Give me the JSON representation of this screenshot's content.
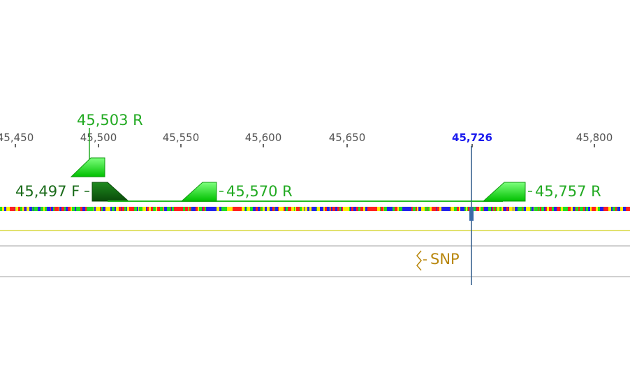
{
  "ruler": {
    "ticks": [
      {
        "label": "45,450",
        "pos": 45450
      },
      {
        "label": "45,500",
        "pos": 45500
      },
      {
        "label": "45,550",
        "pos": 45550
      },
      {
        "label": "45,600",
        "pos": 45600
      },
      {
        "label": "45,650",
        "pos": 45650
      },
      {
        "label": "45,800",
        "pos": 45800
      }
    ],
    "cursor": {
      "label": "45,726",
      "pos": 45726
    }
  },
  "primers": [
    {
      "label": "45,503 R",
      "pos": 45503,
      "direction": "reverse"
    },
    {
      "label": "45,497 F",
      "pos": 45497,
      "direction": "forward"
    },
    {
      "label": "45,570 R",
      "pos": 45570,
      "direction": "reverse"
    },
    {
      "label": "45,757 R",
      "pos": 45757,
      "direction": "reverse"
    }
  ],
  "annotations": {
    "snp_label": "SNP"
  },
  "colors": {
    "primer_light": "#22dd22",
    "primer_dark": "#1a6b1a",
    "primer_text": "#22aa22",
    "cursor_label": "#1a1aee",
    "cursor_line": "#2e5a8a",
    "snp": "#b8860b",
    "track_yellow": "#d8d840",
    "track_gray": "#c0c0c0"
  }
}
